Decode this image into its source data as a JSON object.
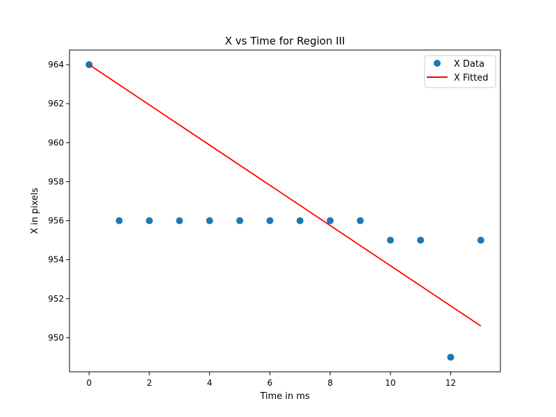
{
  "chart_data": {
    "type": "scatter",
    "title": "X vs Time for Region III",
    "xlabel": "Time in ms",
    "ylabel": "X in pixels",
    "xlim": [
      -0.65,
      13.65
    ],
    "ylim": [
      948.25,
      964.75
    ],
    "xticks": [
      0,
      2,
      4,
      6,
      8,
      10,
      12
    ],
    "yticks": [
      950,
      952,
      954,
      956,
      958,
      960,
      962,
      964
    ],
    "grid": false,
    "legend_position": "top-right",
    "series": [
      {
        "name": "X Data",
        "kind": "scatter",
        "color": "#1f77b4",
        "x": [
          0,
          1,
          2,
          3,
          4,
          5,
          6,
          7,
          8,
          9,
          10,
          11,
          12,
          13
        ],
        "y": [
          964,
          956,
          956,
          956,
          956,
          956,
          956,
          956,
          956,
          956,
          955,
          955,
          949,
          955
        ]
      },
      {
        "name": "X Fitted",
        "kind": "line",
        "color": "#ff0000",
        "x": [
          0,
          13
        ],
        "y": [
          964.0,
          950.6
        ]
      }
    ]
  }
}
